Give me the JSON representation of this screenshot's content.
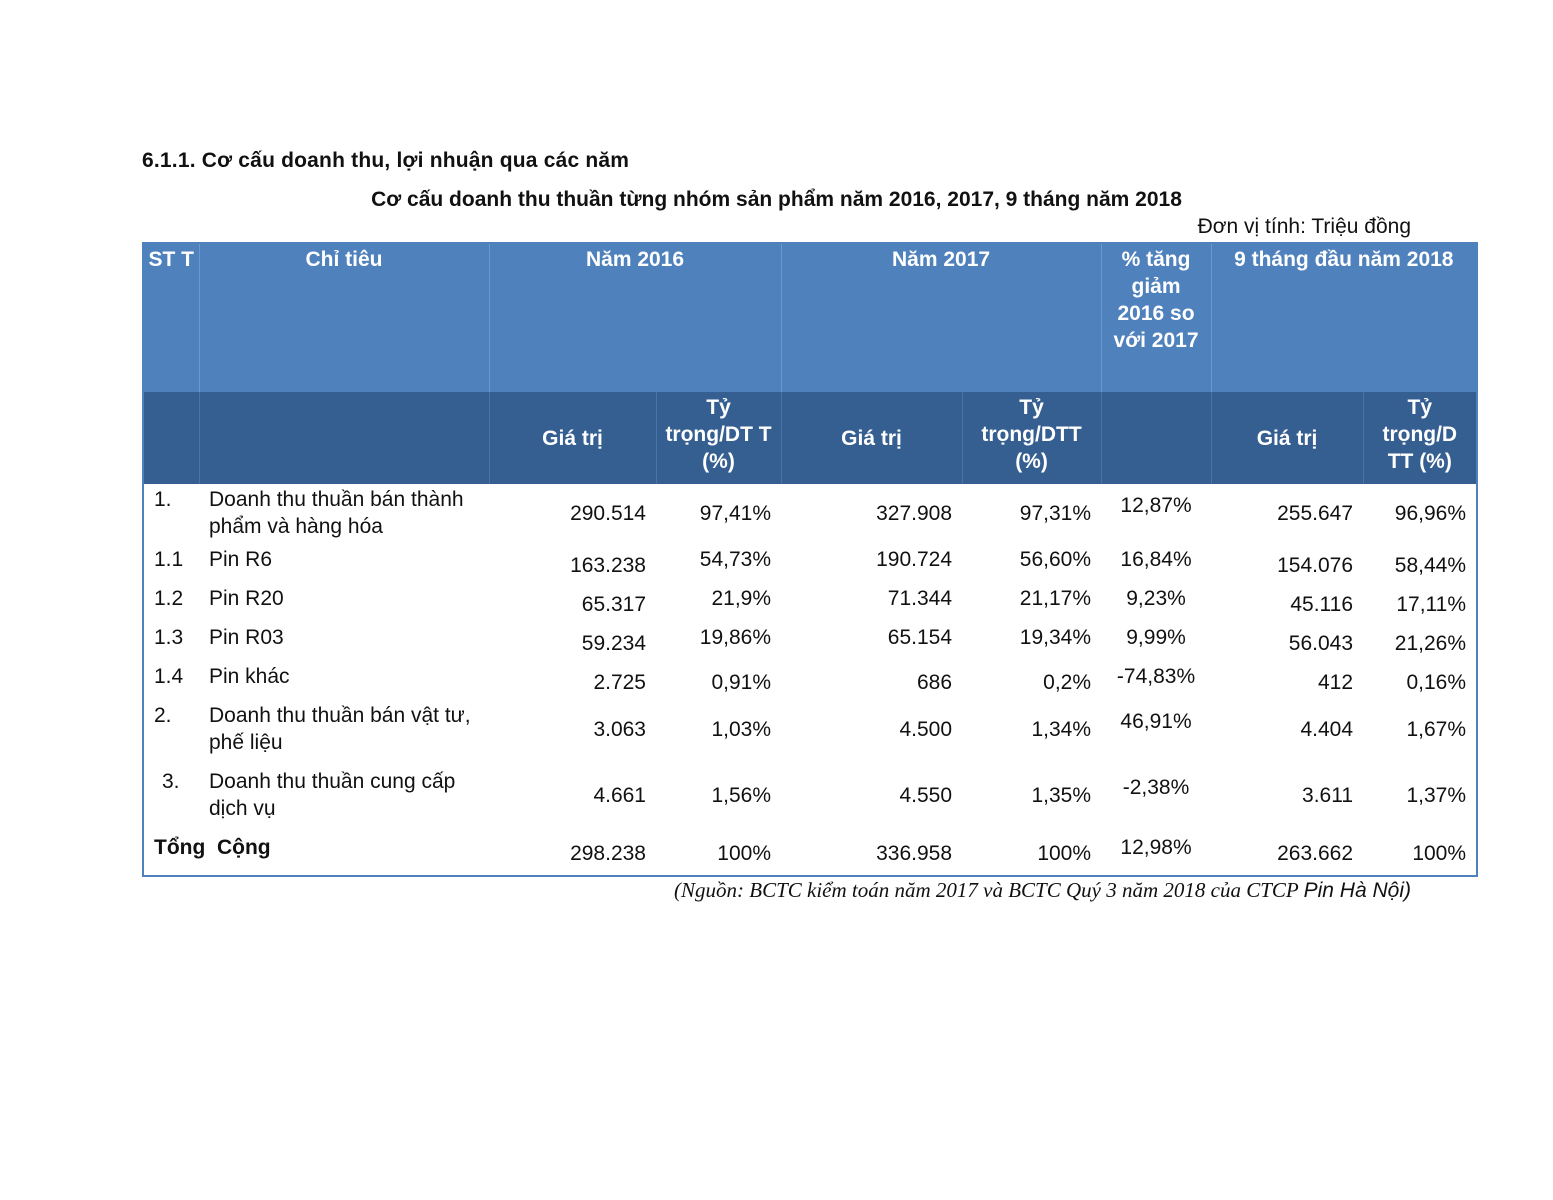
{
  "section_heading": "6.1.1.  Cơ cấu doanh thu, lợi nhuận qua các năm",
  "table_title": "Cơ cấu doanh thu thuần từng nhóm sản phẩm năm 2016, 2017, 9 tháng năm 2018",
  "unit_note": "Đơn vị tính: Triệu đồng",
  "header": {
    "stt": "ST T",
    "chi_tieu": "Chỉ tiêu",
    "nam_2016": "Năm 2016",
    "nam_2017": "Năm 2017",
    "pct_change": "% tăng giảm 2016 so với 2017",
    "nine_months": "9 tháng đầu năm 2018",
    "gia_tri": "Giá trị",
    "ty_trong_2016": "Tỷ trọng/DT T (%)",
    "ty_trong_2017": "Tỷ trọng/DTT (%)",
    "ty_trong_2018": "Tỷ trọng/D TT (%)"
  },
  "rows": [
    {
      "stt": "1.",
      "label": "Doanh thu thuần bán thành phẩm và hàng hóa",
      "v2016": "290.514",
      "p2016": "97,41%",
      "v2017": "327.908",
      "p2017": "97,31%",
      "change": "12,87%",
      "v2018": "255.647",
      "p2018": "96,96%"
    },
    {
      "stt": "1.1",
      "label": "Pin R6",
      "v2016": "163.238",
      "p2016": "54,73%",
      "v2017": "190.724",
      "p2017": "56,60%",
      "change": "16,84%",
      "v2018": "154.076",
      "p2018": "58,44%"
    },
    {
      "stt": "1.2",
      "label": "Pin R20",
      "v2016": "65.317",
      "p2016": "21,9%",
      "v2017": "71.344",
      "p2017": "21,17%",
      "change": "9,23%",
      "v2018": "45.116",
      "p2018": "17,11%"
    },
    {
      "stt": "1.3",
      "label": "Pin R03",
      "v2016": "59.234",
      "p2016": "19,86%",
      "v2017": "65.154",
      "p2017": "19,34%",
      "change": "9,99%",
      "v2018": "56.043",
      "p2018": "21,26%"
    },
    {
      "stt": "1.4",
      "label": "Pin khác",
      "v2016": "2.725",
      "p2016": "0,91%",
      "v2017": "686",
      "p2017": "0,2%",
      "change": "-74,83%",
      "v2018": "412",
      "p2018": "0,16%"
    },
    {
      "stt": "2.",
      "label": "Doanh thu thuần bán vật tư, phế liệu",
      "v2016": "3.063",
      "p2016": "1,03%",
      "v2017": "4.500",
      "p2017": "1,34%",
      "change": "46,91%",
      "v2018": "4.404",
      "p2018": "1,67%"
    },
    {
      "stt": "3.",
      "label": "Doanh thu thuần cung cấp dịch vụ",
      "v2016": "4.661",
      "p2016": "1,56%",
      "v2017": "4.550",
      "p2017": "1,35%",
      "change": "-2,38%",
      "v2018": "3.611",
      "p2018": "1,37%"
    }
  ],
  "total": {
    "label": "Tổng  Cộng",
    "v2016": "298.238",
    "p2016": "100%",
    "v2017": "336.958",
    "p2017": "100%",
    "change": "12,98%",
    "v2018": "263.662",
    "p2018": "100%"
  },
  "source_note": "(Nguồn: BCTC kiểm toán năm 2017 và BCTC Quý 3 năm 2018 của CTCP",
  "source_note_tail": "Pin Hà Nội)"
}
